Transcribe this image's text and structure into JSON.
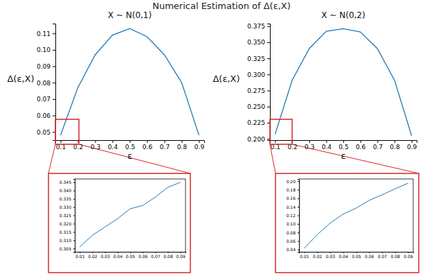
{
  "title": "Numerical Estimation of Δ(ε,X)",
  "chart_data": [
    {
      "type": "line",
      "title": "X ~ N(0,1)",
      "x_label": "ε",
      "y_label": "Δ(ε,X)",
      "x": [
        0.1,
        0.2,
        0.3,
        0.4,
        0.5,
        0.6,
        0.7,
        0.8,
        0.9
      ],
      "series": [
        {
          "color": "#1f77b4",
          "values": [
            0.048,
            0.077,
            0.097,
            0.109,
            0.113,
            0.108,
            0.097,
            0.08,
            0.048
          ]
        }
      ],
      "xlim": [
        0.07,
        0.93
      ],
      "ylim": [
        0.045,
        0.116
      ],
      "xticks": [
        0.1,
        0.2,
        0.3,
        0.4,
        0.5,
        0.6,
        0.7,
        0.8,
        0.9
      ],
      "yticks": [
        0.05,
        0.06,
        0.07,
        0.08,
        0.09,
        {
          "value": 0.1,
          "label": "0.10"
        },
        0.11
      ]
    },
    {
      "type": "line",
      "title": "X ~ N(0,2)",
      "x_label": "ε",
      "y_label": "Δ(ε,X)",
      "x": [
        0.1,
        0.2,
        0.3,
        0.4,
        0.5,
        0.6,
        0.7,
        0.8,
        0.9
      ],
      "series": [
        {
          "color": "#1f77b4",
          "values": [
            0.207,
            0.291,
            0.34,
            0.367,
            0.371,
            0.366,
            0.34,
            0.291,
            0.205
          ]
        }
      ],
      "xlim": [
        0.07,
        0.93
      ],
      "ylim": [
        0.198,
        0.379
      ],
      "xticks": [
        0.1,
        0.2,
        0.3,
        0.4,
        0.5,
        0.6,
        0.7,
        0.8,
        0.9
      ],
      "yticks": [
        {
          "value": 0.2,
          "label": "0.200"
        },
        0.225,
        {
          "value": 0.25,
          "label": "0.250"
        },
        0.275,
        {
          "value": 0.3,
          "label": "0.300"
        },
        0.325,
        {
          "value": 0.35,
          "label": "0.350"
        },
        0.375
      ]
    },
    {
      "type": "line",
      "x": [
        0.01,
        0.02,
        0.03,
        0.04,
        0.05,
        0.06,
        0.07,
        0.08,
        0.09
      ],
      "series": [
        {
          "color": "#1f77b4",
          "values": [
            0.306,
            0.313,
            0.318,
            0.323,
            0.329,
            0.331,
            0.336,
            0.342,
            0.345
          ]
        }
      ],
      "xlim": [
        0.006,
        0.094
      ],
      "ylim": [
        0.303,
        0.347
      ],
      "xticks": [
        0.01,
        0.02,
        0.03,
        0.04,
        0.05,
        0.06,
        0.07,
        0.08,
        0.09
      ],
      "yticks": [
        0.305,
        {
          "value": 0.31,
          "label": "0.310"
        },
        0.315,
        {
          "value": 0.32,
          "label": "0.320"
        },
        0.325,
        {
          "value": 0.33,
          "label": "0.330"
        },
        0.335,
        {
          "value": 0.34,
          "label": "0.340"
        },
        0.345
      ]
    },
    {
      "type": "line",
      "x": [
        0.01,
        0.02,
        0.03,
        0.04,
        0.05,
        0.06,
        0.07,
        0.08,
        0.09
      ],
      "series": [
        {
          "color": "#1f77b4",
          "values": [
            0.043,
            0.075,
            0.102,
            0.123,
            0.137,
            0.155,
            0.168,
            0.182,
            0.195
          ]
        }
      ],
      "xlim": [
        0.006,
        0.094
      ],
      "ylim": [
        0.035,
        0.205
      ],
      "xticks": [
        0.01,
        0.02,
        0.03,
        0.04,
        0.05,
        0.06,
        0.07,
        0.08,
        0.09
      ],
      "yticks": [
        0.04,
        0.06,
        0.08,
        {
          "value": 0.1,
          "label": "0.10"
        },
        0.12,
        0.14,
        0.16,
        0.18,
        {
          "value": 0.2,
          "label": "0.20"
        }
      ]
    }
  ]
}
